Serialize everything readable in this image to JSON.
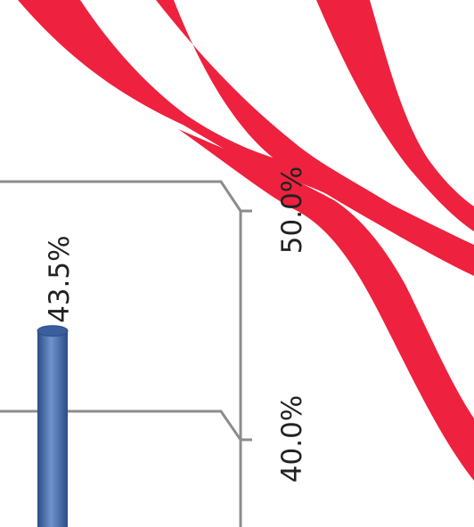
{
  "chart_data": {
    "type": "bar",
    "title": "",
    "xlabel": "",
    "ylabel": "",
    "ylim": [
      30,
      55
    ],
    "y_ticks": [
      {
        "value": 50,
        "label": "50.0%"
      },
      {
        "value": 40,
        "label": "40.0%"
      }
    ],
    "series": [
      {
        "values": [
          43.5
        ],
        "data_labels": [
          "43.5%"
        ],
        "color": "#4A73B5"
      }
    ],
    "grid": true,
    "three_d": true,
    "rotated_text": true
  },
  "colors": {
    "background": "#ffffff",
    "decoration": "#EE213E",
    "gridline": "#8C8C8C",
    "bar_fill": "#4A73B5",
    "bar_dark": "#2B4C85",
    "bar_top": "#3B5E9C"
  }
}
